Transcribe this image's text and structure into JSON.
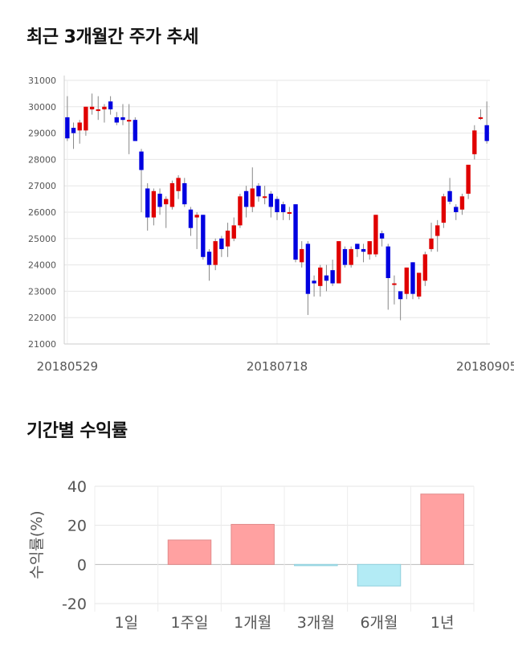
{
  "sections": {
    "price_title": "최근 3개월간 주가 추세",
    "return_title": "기간별 수익률"
  },
  "chart_data": [
    {
      "type": "candlestick",
      "title": "최근 3개월간 주가 추세",
      "ylim": [
        21000,
        31000
      ],
      "yticks": [
        "31000",
        "30000",
        "29000",
        "28000",
        "27000",
        "26000",
        "25000",
        "24000",
        "23000",
        "22000",
        "21000"
      ],
      "xticks": [
        "20180529",
        "20180718",
        "20180905"
      ],
      "grid": true,
      "colors": {
        "up": "#e00000",
        "down": "#0000e0",
        "wick": "#888888"
      },
      "candles": [
        [
          29600,
          28800,
          30400,
          28700
        ],
        [
          29200,
          29000,
          29400,
          28400
        ],
        [
          29100,
          29400,
          29500,
          28600
        ],
        [
          29100,
          30000,
          30000,
          28900
        ],
        [
          29900,
          30000,
          30500,
          29700
        ],
        [
          29900,
          29900,
          30400,
          29500
        ],
        [
          29900,
          30000,
          30100,
          29400
        ],
        [
          30200,
          29900,
          30400,
          29700
        ],
        [
          29600,
          29400,
          29800,
          29300
        ],
        [
          29600,
          29500,
          30100,
          29300
        ],
        [
          29500,
          29500,
          30100,
          28200
        ],
        [
          29500,
          28700,
          29600,
          28700
        ],
        [
          28300,
          27600,
          28400,
          26000
        ],
        [
          26900,
          25800,
          27100,
          25300
        ],
        [
          25800,
          26800,
          26900,
          25500
        ],
        [
          26700,
          26200,
          26900,
          25900
        ],
        [
          26300,
          26500,
          26600,
          25400
        ],
        [
          26200,
          27100,
          27200,
          26100
        ],
        [
          26800,
          27300,
          27400,
          26500
        ],
        [
          27100,
          26300,
          27300,
          26200
        ],
        [
          26100,
          25400,
          26200,
          25100
        ],
        [
          25800,
          25900,
          26000,
          24600
        ],
        [
          25900,
          24300,
          25900,
          24200
        ],
        [
          24500,
          24000,
          24600,
          23400
        ],
        [
          24000,
          24900,
          25000,
          23800
        ],
        [
          25000,
          24600,
          25100,
          24300
        ],
        [
          24700,
          25300,
          25600,
          24300
        ],
        [
          25000,
          25500,
          25800,
          24900
        ],
        [
          25500,
          26600,
          26700,
          25400
        ],
        [
          26800,
          26200,
          27000,
          25800
        ],
        [
          26200,
          26900,
          27700,
          26000
        ],
        [
          27000,
          26600,
          27100,
          26400
        ],
        [
          26600,
          26600,
          27000,
          26300
        ],
        [
          26700,
          26200,
          26800,
          25800
        ],
        [
          26500,
          26000,
          26600,
          25700
        ],
        [
          26300,
          26000,
          26400,
          25700
        ],
        [
          26000,
          26000,
          26200,
          25700
        ],
        [
          26300,
          24200,
          26300,
          24100
        ],
        [
          24100,
          24600,
          24900,
          23900
        ],
        [
          24800,
          22900,
          24900,
          22100
        ],
        [
          23400,
          23300,
          23600,
          22800
        ],
        [
          23200,
          23900,
          24000,
          22800
        ],
        [
          23600,
          23400,
          24000,
          23000
        ],
        [
          23800,
          23300,
          24200,
          23200
        ],
        [
          23300,
          24900,
          24900,
          23300
        ],
        [
          24600,
          24000,
          24700,
          23900
        ],
        [
          24000,
          24600,
          24700,
          23900
        ],
        [
          24800,
          24600,
          24800,
          24300
        ],
        [
          24600,
          24500,
          24800,
          24100
        ],
        [
          24400,
          24900,
          24900,
          24200
        ],
        [
          24400,
          25900,
          25900,
          24300
        ],
        [
          25200,
          25000,
          25300,
          24700
        ],
        [
          24700,
          23500,
          24800,
          22300
        ],
        [
          23300,
          23300,
          23600,
          22500
        ],
        [
          23000,
          22700,
          23000,
          21900
        ],
        [
          22900,
          23900,
          23900,
          22700
        ],
        [
          24100,
          22900,
          24100,
          22700
        ],
        [
          22800,
          23700,
          23700,
          22700
        ],
        [
          23400,
          24400,
          24500,
          23200
        ],
        [
          24600,
          25000,
          25600,
          24500
        ],
        [
          25100,
          25500,
          25700,
          24500
        ],
        [
          25600,
          26600,
          26700,
          25400
        ],
        [
          26800,
          26400,
          27300,
          26300
        ],
        [
          26200,
          26000,
          26300,
          25700
        ],
        [
          26100,
          26600,
          26700,
          25900
        ],
        [
          26700,
          27800,
          27800,
          26500
        ],
        [
          28200,
          29100,
          29300,
          28000
        ],
        [
          29600,
          29600,
          29900,
          29500
        ],
        [
          29300,
          28700,
          30200,
          28600
        ]
      ]
    },
    {
      "type": "bar",
      "title": "기간별 수익률",
      "ylabel": "수익률(%)",
      "ylim": [
        -20,
        40
      ],
      "yticks": [
        "40",
        "20",
        "0",
        "-20"
      ],
      "categories": [
        "1일",
        "1주일",
        "1개월",
        "3개월",
        "6개월",
        "1년"
      ],
      "values": [
        0,
        12.5,
        20.5,
        -0.5,
        -11,
        36
      ],
      "colors": {
        "positive": "#ffa1a1",
        "positive_edge": "#e08a8a",
        "negative": "#b3ebf5",
        "negative_edge": "#8fcfdc"
      }
    }
  ]
}
